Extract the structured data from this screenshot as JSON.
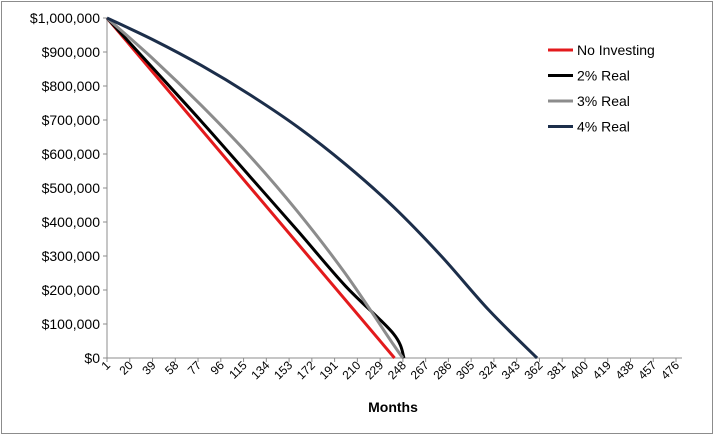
{
  "chart_data": {
    "type": "line",
    "title": "",
    "xlabel": "Months",
    "ylabel": "",
    "xlim": [
      1,
      481
    ],
    "ylim": [
      0,
      1000000
    ],
    "grid": false,
    "legend_position": "top-right",
    "x_tick_labels": [
      "1",
      "20",
      "39",
      "58",
      "77",
      "96",
      "115",
      "134",
      "153",
      "172",
      "191",
      "210",
      "229",
      "248",
      "267",
      "286",
      "305",
      "324",
      "343",
      "362",
      "381",
      "400",
      "419",
      "438",
      "457",
      "476"
    ],
    "y_tick_labels": [
      "$0",
      "$100,000",
      "$200,000",
      "$300,000",
      "$400,000",
      "$500,000",
      "$600,000",
      "$700,000",
      "$800,000",
      "$900,000",
      "$1,000,000"
    ],
    "series": [
      {
        "name": "No Investing",
        "color": "#e31a1c",
        "points": [
          [
            1,
            1000000
          ],
          [
            241,
            0
          ]
        ]
      },
      {
        "name": "2% Real",
        "color": "#000000",
        "points": [
          [
            1,
            1000000
          ],
          [
            40,
            850000
          ],
          [
            80,
            695000
          ],
          [
            120,
            535000
          ],
          [
            160,
            375000
          ],
          [
            200,
            212000
          ],
          [
            240,
            72000
          ],
          [
            249,
            0
          ]
        ]
      },
      {
        "name": "3% Real",
        "color": "#8c8c8c",
        "points": [
          [
            1,
            1000000
          ],
          [
            40,
            878000
          ],
          [
            80,
            742000
          ],
          [
            120,
            595000
          ],
          [
            160,
            431000
          ],
          [
            200,
            248000
          ],
          [
            240,
            40000
          ],
          [
            248,
            0
          ]
        ]
      },
      {
        "name": "4% Real",
        "color": "#1c2e4a",
        "points": [
          [
            1,
            1000000
          ],
          [
            40,
            935000
          ],
          [
            80,
            860000
          ],
          [
            120,
            775000
          ],
          [
            160,
            680000
          ],
          [
            200,
            570000
          ],
          [
            240,
            445000
          ],
          [
            280,
            300000
          ],
          [
            320,
            140000
          ],
          [
            360,
            0
          ]
        ]
      }
    ]
  }
}
